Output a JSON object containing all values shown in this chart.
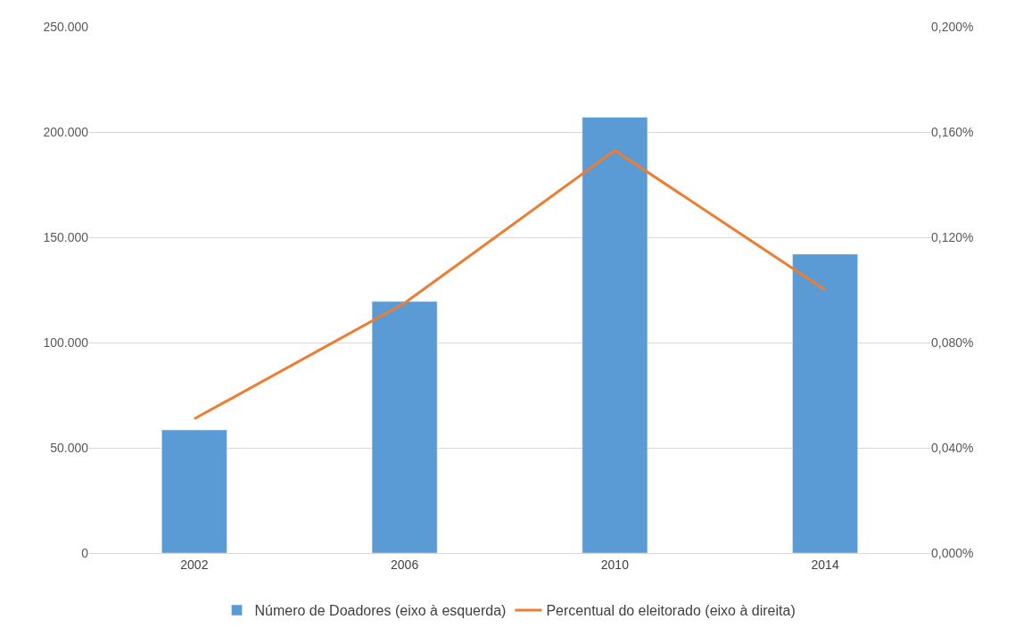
{
  "chart_data": {
    "type": "bar",
    "categories": [
      "2002",
      "2006",
      "2010",
      "2014"
    ],
    "series": [
      {
        "name": "Número de Doadores (eixo à esquerda)",
        "color": "#5b9bd5",
        "values": [
          58500,
          119500,
          207000,
          142000
        ]
      },
      {
        "name": "Percentual do eleitorado (eixo à direita)",
        "color": "#ed7d31",
        "type": "line",
        "axis": "y2",
        "values": [
          0.051,
          0.095,
          0.153,
          0.1
        ]
      }
    ],
    "ylim": [
      0,
      250000
    ],
    "yticks": [
      {
        "value": 0,
        "label": "0"
      },
      {
        "value": 50000,
        "label": "50.000"
      },
      {
        "value": 100000,
        "label": "100.000"
      },
      {
        "value": 150000,
        "label": "150.000"
      },
      {
        "value": 200000,
        "label": "200.000"
      },
      {
        "value": 250000,
        "label": "250.000"
      }
    ],
    "y2lim": [
      0,
      0.2
    ],
    "y2ticks": [
      {
        "value": 0,
        "label": "0,000%"
      },
      {
        "value": 0.04,
        "label": "0,040%"
      },
      {
        "value": 0.08,
        "label": "0,080%"
      },
      {
        "value": 0.12,
        "label": "0,120%"
      },
      {
        "value": 0.16,
        "label": "0,160%"
      },
      {
        "value": 0.2,
        "label": "0,200%"
      }
    ],
    "grid": "y",
    "legend": "bottom",
    "marker": "none",
    "line_style": "solid"
  }
}
